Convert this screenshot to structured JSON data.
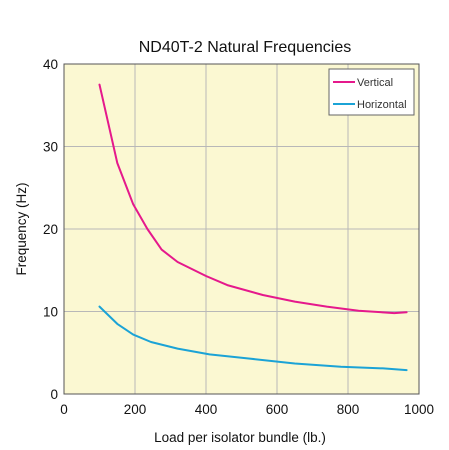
{
  "chart_data": {
    "type": "line",
    "title": "ND40T-2 Natural Frequencies",
    "xlabel": "Load per isolator bundle (lb.)",
    "ylabel": "Frequency (Hz)",
    "xlim": [
      0,
      1000
    ],
    "ylim": [
      0,
      40
    ],
    "xticks": [
      0,
      200,
      400,
      600,
      800,
      1000
    ],
    "yticks": [
      0,
      10,
      20,
      30,
      40
    ],
    "grid": true,
    "legend_position": "top-right",
    "plot_background": "#fbf8d2",
    "series": [
      {
        "name": "Vertical",
        "color": "#e5198c",
        "x": [
          100,
          150,
          195,
          235,
          275,
          320,
          400,
          460,
          560,
          650,
          740,
          830,
          930,
          965
        ],
        "y": [
          37.5,
          28,
          23,
          20,
          17.5,
          16,
          14.3,
          13.2,
          12,
          11.2,
          10.6,
          10.1,
          9.8,
          9.9
        ]
      },
      {
        "name": "Horizontal",
        "color": "#1ba3d6",
        "x": [
          100,
          150,
          195,
          245,
          320,
          410,
          520,
          650,
          780,
          900,
          965
        ],
        "y": [
          10.6,
          8.5,
          7.2,
          6.3,
          5.5,
          4.8,
          4.3,
          3.7,
          3.3,
          3.1,
          2.9
        ]
      }
    ]
  }
}
